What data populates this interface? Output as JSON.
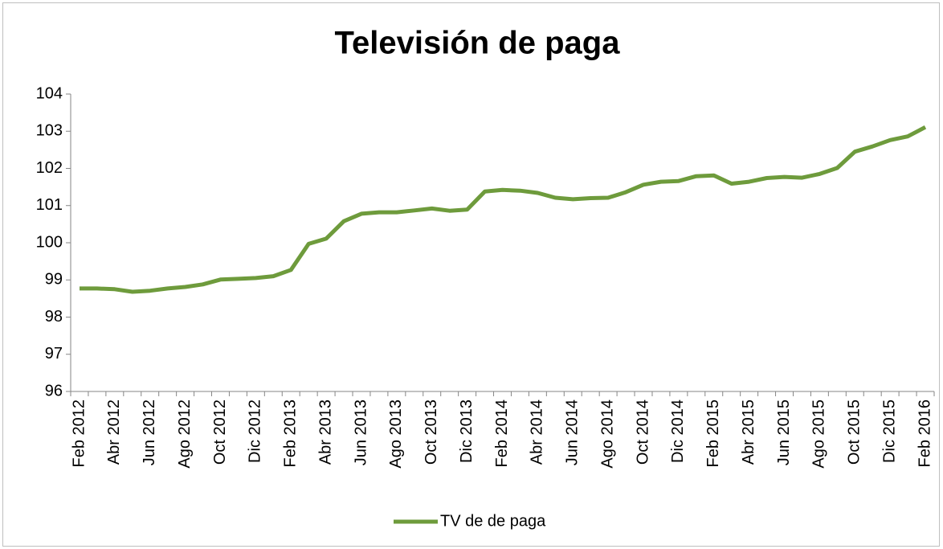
{
  "chart_data": {
    "type": "line",
    "title": "Televisión de paga",
    "categories": [
      "Feb 2012",
      null,
      "Abr 2012",
      null,
      "Jun 2012",
      null,
      "Ago 2012",
      null,
      "Oct 2012",
      null,
      "Dic 2012",
      null,
      "Feb 2013",
      null,
      "Abr 2013",
      null,
      "Jun 2013",
      null,
      "Ago 2013",
      null,
      "Oct 2013",
      null,
      "Dic 2013",
      null,
      "Feb 2014",
      null,
      "Abr 2014",
      null,
      "Jun 2014",
      null,
      "Ago 2014",
      null,
      "Oct 2014",
      null,
      "Dic 2014",
      null,
      "Feb 2015",
      null,
      "Abr 2015",
      null,
      "Jun 2015",
      null,
      "Ago 2015",
      null,
      "Oct 2015",
      null,
      "Dic 2015",
      null,
      "Feb 2016"
    ],
    "series": [
      {
        "name": "TV de de paga",
        "color": "#6e9b3c",
        "values": [
          98.77,
          98.77,
          98.75,
          98.68,
          98.71,
          98.77,
          98.81,
          98.88,
          99.01,
          99.03,
          99.05,
          99.1,
          99.27,
          99.97,
          100.11,
          100.58,
          100.78,
          100.82,
          100.82,
          100.87,
          100.92,
          100.86,
          100.89,
          101.38,
          101.42,
          101.4,
          101.34,
          101.21,
          101.17,
          101.2,
          101.21,
          101.36,
          101.56,
          101.64,
          101.66,
          101.79,
          101.81,
          101.59,
          101.64,
          101.74,
          101.77,
          101.75,
          101.85,
          102.01,
          102.45,
          102.59,
          102.76,
          102.86,
          103.11
        ]
      }
    ],
    "ylim": [
      96,
      104
    ],
    "yticks": [
      96,
      97,
      98,
      99,
      100,
      101,
      102,
      103,
      104
    ],
    "legend": "bottom"
  }
}
